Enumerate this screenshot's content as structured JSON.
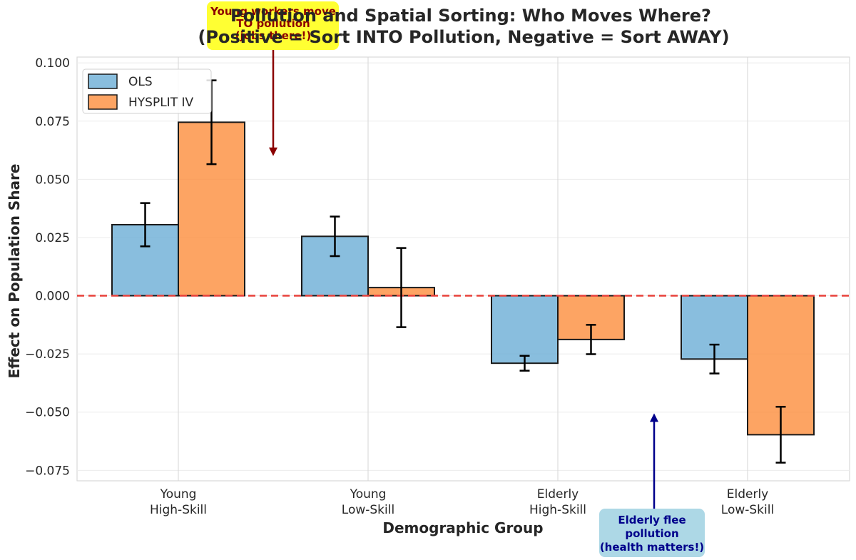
{
  "chart_data": {
    "type": "bar",
    "title_lines": [
      "Pollution and Spatial Sorting: Who Moves Where?",
      "(Positive = Sort INTO Pollution, Negative = Sort AWAY)"
    ],
    "xlabel": "Demographic Group",
    "ylabel": "Effect on Population Share",
    "categories": [
      [
        "Young",
        "High-Skill"
      ],
      [
        "Young",
        "Low-Skill"
      ],
      [
        "Elderly",
        "High-Skill"
      ],
      [
        "Elderly",
        "Low-Skill"
      ]
    ],
    "series": [
      {
        "name": "OLS",
        "color": "#6baed6",
        "values": [
          0.0305,
          0.0255,
          -0.029,
          -0.0272
        ],
        "errors": [
          0.0093,
          0.0085,
          0.0032,
          0.0062
        ]
      },
      {
        "name": "HYSPLIT IV",
        "color": "#fd8d3c",
        "values": [
          0.0745,
          0.0035,
          -0.0188,
          -0.0597
        ],
        "errors": [
          0.018,
          0.017,
          0.0063,
          0.012
        ]
      }
    ],
    "ylim": [
      -0.0795,
      0.1025
    ],
    "yticks": [
      -0.075,
      -0.05,
      -0.025,
      0.0,
      0.025,
      0.05,
      0.075,
      0.1
    ],
    "ytick_labels": [
      "−0.075",
      "−0.050",
      "−0.025",
      "0.000",
      "0.025",
      "0.050",
      "0.075",
      "0.100"
    ],
    "reference_line": {
      "y": 0,
      "color": "#e8403a",
      "style": "dashed"
    },
    "grid": true,
    "legend_position": "top-left",
    "annotations": [
      {
        "lines": [
          "Young workers move",
          "TO pollution",
          "(jobs there!)"
        ],
        "bg": "#ffff33",
        "color": "#8b0000",
        "arrow_target": {
          "category_index": 0.5,
          "y": 0.06
        }
      },
      {
        "lines": [
          "Elderly flee",
          "pollution",
          "(health matters!)"
        ],
        "bg": "#add8e6",
        "color": "#00008b",
        "arrow_target": {
          "category_index": 2.5,
          "y": -0.0505
        }
      }
    ]
  }
}
